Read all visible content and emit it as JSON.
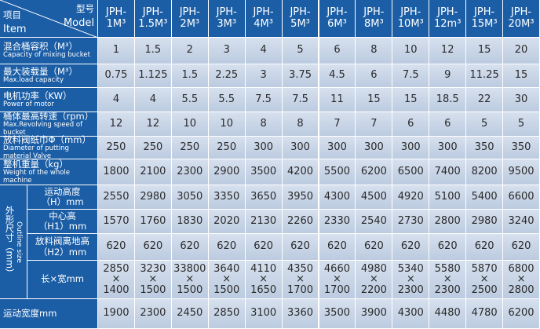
{
  "header": {
    "model_zh": "型号",
    "model_en": "Model",
    "item_zh": "项目",
    "item_en": "Item",
    "models": [
      [
        "JPH-",
        "1M³"
      ],
      [
        "JPH-",
        "1.5M³"
      ],
      [
        "JPH-",
        "2M³"
      ],
      [
        "JPH-",
        "3M³"
      ],
      [
        "JPH-",
        "4M³"
      ],
      [
        "JPH-",
        "5M³"
      ],
      [
        "JPH-",
        "6M³"
      ],
      [
        "JPH-",
        "8M³"
      ],
      [
        "JPH-",
        "10M³"
      ],
      [
        "JPH-",
        "12m³"
      ],
      [
        "JPH-",
        "15M³"
      ],
      [
        "JPH-",
        "20M³"
      ]
    ]
  },
  "rows": [
    {
      "label": [
        "混合桶容积（M³）"
      ],
      "en": "Capacity of mixing bucket",
      "cells": [
        "1",
        "1.5",
        "2",
        "3",
        "4",
        "5",
        "6",
        "8",
        "10",
        "12",
        "15",
        "20"
      ]
    },
    {
      "label": [
        "最大装载量（M³）"
      ],
      "en": "Max.load capacity",
      "cells": [
        "0.75",
        "1.125",
        "1.5",
        "2.25",
        "3",
        "3.75",
        "4.5",
        "6",
        "7.5",
        "9",
        "11.25",
        "15"
      ]
    },
    {
      "label": [
        "电机功率（KW）"
      ],
      "en": "Power of motor",
      "cells": [
        "4",
        "4",
        "5.5",
        "5.5",
        "7.5",
        "7.5",
        "11",
        "15",
        "15",
        "18.5",
        "22",
        "30"
      ]
    },
    {
      "label": [
        "桶体最高转速（rpm）"
      ],
      "en": "Max.Revolving speed of bucket",
      "cells": [
        "12",
        "12",
        "10",
        "10",
        "8",
        "8",
        "7",
        "7",
        "6",
        "6",
        "5",
        "5"
      ]
    },
    {
      "label": [
        "放料阀纸巾Φ（mm）"
      ],
      "en": "Diameter of putting material Valve",
      "cells": [
        "250",
        "250",
        "250",
        "250",
        "300",
        "300",
        "300",
        "300",
        "300",
        "300",
        "350",
        "350"
      ]
    },
    {
      "label": [
        "整机重量（kg）"
      ],
      "en": "Weight of the whole machine",
      "cells": [
        "1800",
        "2100",
        "2300",
        "2900",
        "3500",
        "4200",
        "5500",
        "6200",
        "6500",
        "7400",
        "8200",
        "9500"
      ]
    }
  ],
  "outline": {
    "zh": "外形尺寸（mm）",
    "en": "Outline size",
    "rows": [
      {
        "label": [
          "运动高度",
          "（H）mm"
        ],
        "cells": [
          "2550",
          "2980",
          "3050",
          "3350",
          "3650",
          "3950",
          "4300",
          "4500",
          "4920",
          "5100",
          "5400",
          "6600"
        ]
      },
      {
        "label": [
          "中心高",
          "（H1）mm"
        ],
        "cells": [
          "1570",
          "1760",
          "1830",
          "2020",
          "2130",
          "2260",
          "2330",
          "2540",
          "2730",
          "2800",
          "2980",
          "3240"
        ]
      },
      {
        "label": [
          "放料阀离地高",
          "（H2）mm"
        ],
        "cells": [
          "620",
          "620",
          "620",
          "620",
          "620",
          "620",
          "620",
          "620",
          "620",
          "620",
          "620",
          "620"
        ]
      },
      {
        "label": [
          "长×宽mm"
        ],
        "cells": [
          [
            "2850",
            "×",
            "1400"
          ],
          [
            "3230",
            "×",
            "1500"
          ],
          [
            "33800",
            "×",
            "1500"
          ],
          [
            "3640",
            "×",
            "1500"
          ],
          [
            "4110",
            "×",
            "1650"
          ],
          [
            "4350",
            "×",
            "1700"
          ],
          [
            "4660",
            "×",
            "1700"
          ],
          [
            "4980",
            "×",
            "2200"
          ],
          [
            "5340",
            "×",
            "2300"
          ],
          [
            "5580",
            "×",
            "2300"
          ],
          [
            "5870",
            "×",
            "2500"
          ],
          [
            "6800",
            "×",
            "2800"
          ]
        ]
      }
    ]
  },
  "rows_after": [
    {
      "label": [
        "运动宽度mm"
      ],
      "cells": [
        "1900",
        "2300",
        "2450",
        "2850",
        "3100",
        "3360",
        "3500",
        "3900",
        "4300",
        "4480",
        "4780",
        "6200"
      ]
    }
  ]
}
